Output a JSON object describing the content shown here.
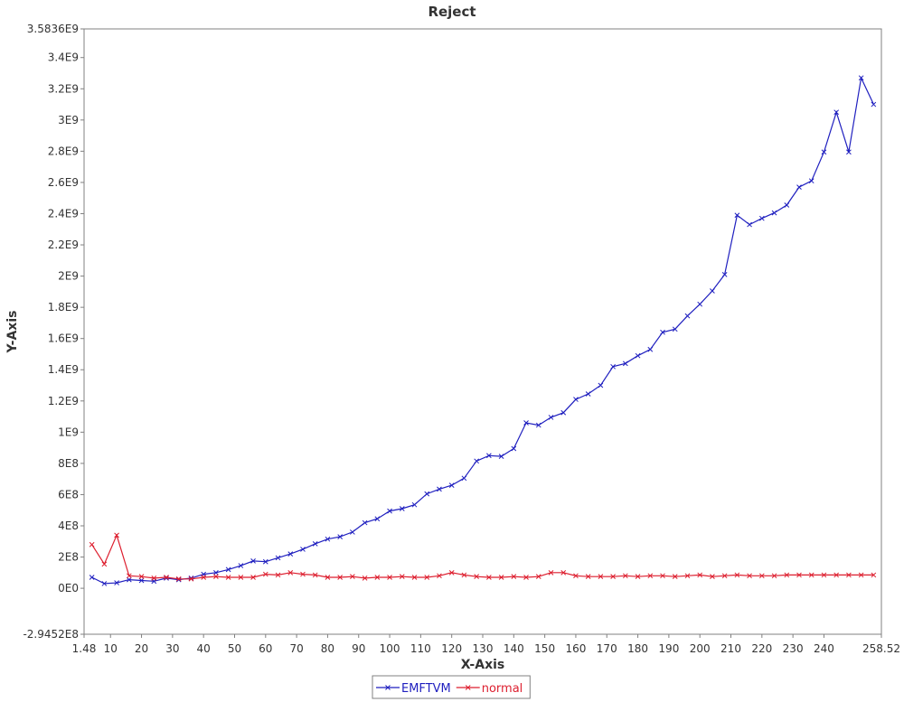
{
  "chart_data": {
    "type": "line",
    "title": "Reject",
    "xlabel": "X-Axis",
    "ylabel": "Y-Axis",
    "xlim": [
      1.48,
      258.52
    ],
    "ylim": [
      -294520000,
      3583600000
    ],
    "x_tick_labels": [
      "1.48",
      "10",
      "20",
      "30",
      "40",
      "50",
      "60",
      "70",
      "80",
      "90",
      "100",
      "110",
      "120",
      "130",
      "140",
      "150",
      "160",
      "170",
      "180",
      "190",
      "200",
      "210",
      "220",
      "230",
      "240",
      "258.52"
    ],
    "x_tick_values": [
      1.48,
      10,
      20,
      30,
      40,
      50,
      60,
      70,
      80,
      90,
      100,
      110,
      120,
      130,
      140,
      150,
      160,
      170,
      180,
      190,
      200,
      210,
      220,
      230,
      240,
      258.52
    ],
    "y_tick_labels": [
      "-2.9452E8",
      "0E0",
      "2E8",
      "4E8",
      "6E8",
      "8E8",
      "1E9",
      "1.2E9",
      "1.4E9",
      "1.6E9",
      "1.8E9",
      "2E9",
      "2.2E9",
      "2.4E9",
      "2.6E9",
      "2.8E9",
      "3E9",
      "3.2E9",
      "3.4E9",
      "3.5836E9"
    ],
    "y_tick_values": [
      -294520000,
      0,
      200000000,
      400000000,
      600000000,
      800000000,
      1000000000,
      1200000000,
      1400000000,
      1600000000,
      1800000000,
      2000000000,
      2200000000,
      2400000000,
      2600000000,
      2800000000,
      3000000000,
      3200000000,
      3400000000,
      3583600000
    ],
    "grid": false,
    "legend_position": "bottom-center",
    "series": [
      {
        "name": "EMFTVM",
        "color": "#1f1fbf",
        "x": [
          4,
          8,
          12,
          16,
          20,
          24,
          28,
          32,
          36,
          40,
          44,
          48,
          52,
          56,
          60,
          64,
          68,
          72,
          76,
          80,
          84,
          88,
          92,
          96,
          100,
          104,
          108,
          112,
          116,
          120,
          124,
          128,
          132,
          136,
          140,
          144,
          148,
          152,
          156,
          160,
          164,
          168,
          172,
          176,
          180,
          184,
          188,
          192,
          196,
          200,
          204,
          208,
          212,
          216,
          220,
          224,
          228,
          232,
          236,
          240,
          244,
          248,
          252,
          256
        ],
        "values": [
          70000000,
          30000000,
          35000000,
          55000000,
          50000000,
          45000000,
          65000000,
          55000000,
          65000000,
          90000000,
          100000000,
          120000000,
          145000000,
          175000000,
          170000000,
          195000000,
          220000000,
          250000000,
          285000000,
          315000000,
          330000000,
          360000000,
          420000000,
          445000000,
          495000000,
          510000000,
          535000000,
          605000000,
          635000000,
          660000000,
          705000000,
          815000000,
          850000000,
          845000000,
          895000000,
          1060000000,
          1045000000,
          1095000000,
          1125000000,
          1210000000,
          1245000000,
          1300000000,
          1420000000,
          1440000000,
          1490000000,
          1530000000,
          1640000000,
          1660000000,
          1745000000,
          1820000000,
          1905000000,
          2010000000,
          2390000000,
          2330000000,
          2370000000,
          2405000000,
          2455000000,
          2570000000,
          2610000000,
          2795000000,
          3050000000,
          2795000000,
          3270000000,
          3100000000
        ]
      },
      {
        "name": "normal",
        "color": "#dd1f2f",
        "x": [
          4,
          8,
          12,
          16,
          20,
          24,
          28,
          32,
          36,
          40,
          44,
          48,
          52,
          56,
          60,
          64,
          68,
          72,
          76,
          80,
          84,
          88,
          92,
          96,
          100,
          104,
          108,
          112,
          116,
          120,
          124,
          128,
          132,
          136,
          140,
          144,
          148,
          152,
          156,
          160,
          164,
          168,
          172,
          176,
          180,
          184,
          188,
          192,
          196,
          200,
          204,
          208,
          212,
          216,
          220,
          224,
          228,
          232,
          236,
          240,
          244,
          248,
          252,
          256
        ],
        "values": [
          280000000,
          155000000,
          340000000,
          80000000,
          75000000,
          65000000,
          70000000,
          60000000,
          60000000,
          70000000,
          75000000,
          70000000,
          70000000,
          70000000,
          90000000,
          85000000,
          100000000,
          90000000,
          85000000,
          70000000,
          70000000,
          75000000,
          65000000,
          70000000,
          70000000,
          75000000,
          70000000,
          70000000,
          80000000,
          100000000,
          85000000,
          75000000,
          70000000,
          70000000,
          75000000,
          70000000,
          75000000,
          100000000,
          100000000,
          80000000,
          75000000,
          75000000,
          75000000,
          80000000,
          75000000,
          80000000,
          80000000,
          75000000,
          80000000,
          85000000,
          75000000,
          80000000,
          85000000,
          80000000,
          80000000,
          80000000,
          85000000,
          85000000,
          85000000,
          85000000,
          85000000,
          85000000,
          85000000,
          85000000
        ]
      }
    ]
  }
}
